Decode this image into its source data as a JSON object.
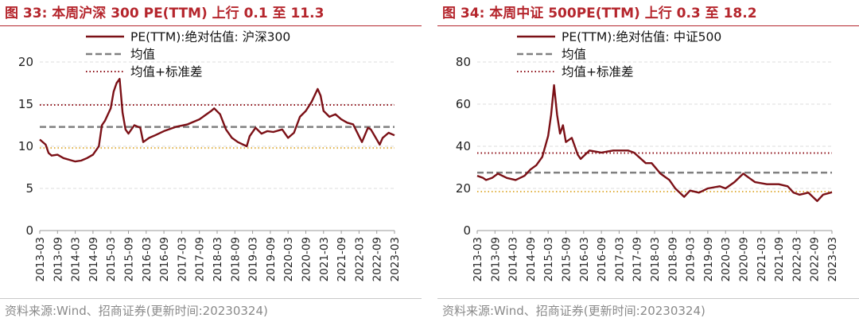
{
  "panels": [
    {
      "title": "图 33:  本周沪深 300 PE(TTM) 上行 0.1 至 11.3",
      "source": "资料来源:Wind、招商证券(更新时间:20230324)",
      "chart_data": {
        "type": "line",
        "title": "图 33:  本周沪深 300 PE(TTM) 上行 0.1 至 11.3",
        "ylim": [
          0,
          20
        ],
        "yticks": [
          "0",
          "5",
          "10",
          "15",
          "20"
        ],
        "xticks": [
          "2013-03",
          "2013-09",
          "2014-03",
          "2014-09",
          "2015-03",
          "2015-09",
          "2016-03",
          "2016-09",
          "2017-03",
          "2017-09",
          "2018-03",
          "2018-09",
          "2019-03",
          "2019-09",
          "2020-03",
          "2020-09",
          "2021-03",
          "2021-09",
          "2022-03",
          "2022-09",
          "2023-03"
        ],
        "xrange": [
          "2013-03",
          "2023-03"
        ],
        "legend_position": "top",
        "grid": "horizontal",
        "series": [
          {
            "name": "PE(TTM):绝对估值: 沪深300",
            "color": "#7b1016",
            "style": "solid",
            "x": [
              "2013-03",
              "2013-05",
              "2013-06",
              "2013-07",
              "2013-09",
              "2013-11",
              "2014-01",
              "2014-03",
              "2014-05",
              "2014-07",
              "2014-09",
              "2014-11",
              "2014-12",
              "2015-01",
              "2015-03",
              "2015-04",
              "2015-05",
              "2015-06",
              "2015-07",
              "2015-08",
              "2015-09",
              "2015-11",
              "2016-01",
              "2016-02",
              "2016-04",
              "2016-06",
              "2016-09",
              "2017-01",
              "2017-05",
              "2017-09",
              "2018-01",
              "2018-02",
              "2018-04",
              "2018-06",
              "2018-08",
              "2018-10",
              "2019-01",
              "2019-02",
              "2019-04",
              "2019-06",
              "2019-08",
              "2019-10",
              "2020-01",
              "2020-03",
              "2020-05",
              "2020-07",
              "2020-09",
              "2020-11",
              "2021-01",
              "2021-02",
              "2021-03",
              "2021-05",
              "2021-07",
              "2021-09",
              "2021-11",
              "2022-01",
              "2022-03",
              "2022-04",
              "2022-06",
              "2022-07",
              "2022-09",
              "2022-10",
              "2022-11",
              "2023-01",
              "2023-03"
            ],
            "values": [
              10.8,
              10.2,
              9.2,
              8.9,
              9.0,
              8.6,
              8.4,
              8.2,
              8.3,
              8.6,
              9.0,
              10.0,
              12.5,
              13.0,
              14.5,
              16.5,
              17.5,
              18.0,
              14.0,
              12.0,
              11.5,
              12.5,
              12.2,
              10.5,
              11.0,
              11.3,
              11.8,
              12.3,
              12.6,
              13.2,
              14.2,
              14.5,
              13.8,
              12.0,
              11.0,
              10.5,
              10.0,
              11.2,
              12.2,
              11.5,
              11.8,
              11.7,
              12.0,
              11.0,
              11.6,
              13.5,
              14.2,
              15.3,
              16.8,
              16.0,
              14.2,
              13.5,
              13.8,
              13.2,
              12.8,
              12.6,
              11.2,
              10.5,
              12.2,
              12.0,
              10.8,
              10.2,
              11.0,
              11.6,
              11.3
            ]
          },
          {
            "name": "均值",
            "color": "#808080",
            "style": "dashed",
            "value": 12.3
          },
          {
            "name": "均值+标准差",
            "color": "#8c0e16",
            "style": "dotted",
            "value": 14.9
          },
          {
            "name": "",
            "color": "#e0b040",
            "style": "dotted",
            "value": 9.8
          }
        ]
      }
    },
    {
      "title": "图 34:  本周中证 500PE(TTM) 上行 0.3 至 18.2",
      "source": "资料来源:Wind、招商证券(更新时间:20230324)",
      "chart_data": {
        "type": "line",
        "title": "图 34:  本周中证 500PE(TTM) 上行 0.3 至 18.2",
        "ylim": [
          0,
          80
        ],
        "yticks": [
          "0",
          "20",
          "40",
          "60",
          "80"
        ],
        "xticks": [
          "2013-03",
          "2013-09",
          "2014-03",
          "2014-09",
          "2015-03",
          "2015-09",
          "2016-03",
          "2016-09",
          "2017-03",
          "2017-09",
          "2018-03",
          "2018-09",
          "2019-03",
          "2019-09",
          "2020-03",
          "2020-09",
          "2021-03",
          "2021-09",
          "2022-03",
          "2022-09",
          "2023-03"
        ],
        "xrange": [
          "2013-03",
          "2023-03"
        ],
        "legend_position": "top",
        "grid": "horizontal",
        "series": [
          {
            "name": "PE(TTM):绝对估值: 中证500",
            "color": "#7b1016",
            "style": "solid",
            "x": [
              "2013-03",
              "2013-05",
              "2013-06",
              "2013-08",
              "2013-10",
              "2014-01",
              "2014-04",
              "2014-07",
              "2014-09",
              "2014-11",
              "2015-01",
              "2015-03",
              "2015-04",
              "2015-05",
              "2015-06",
              "2015-07",
              "2015-08",
              "2015-09",
              "2015-11",
              "2015-12",
              "2016-01",
              "2016-02",
              "2016-05",
              "2016-09",
              "2017-01",
              "2017-06",
              "2017-08",
              "2017-12",
              "2018-02",
              "2018-05",
              "2018-08",
              "2018-10",
              "2019-01",
              "2019-03",
              "2019-06",
              "2019-09",
              "2020-01",
              "2020-03",
              "2020-06",
              "2020-09",
              "2020-11",
              "2021-01",
              "2021-05",
              "2021-09",
              "2021-12",
              "2022-02",
              "2022-04",
              "2022-07",
              "2022-10",
              "2022-12",
              "2023-03"
            ],
            "values": [
              26,
              25,
              24,
              25,
              27,
              25,
              24,
              26,
              29,
              31,
              35,
              45,
              55,
              69,
              55,
              46,
              50,
              42,
              44,
              40,
              36,
              34,
              38,
              37,
              38,
              38,
              37,
              32,
              32,
              27,
              24,
              20,
              16,
              19,
              18,
              20,
              21,
              20,
              23,
              27,
              25,
              23,
              22,
              22,
              21,
              18,
              17,
              18,
              14,
              17,
              18.2
            ]
          },
          {
            "name": "均值",
            "color": "#808080",
            "style": "dashed",
            "value": 27.5
          },
          {
            "name": "均值+标准差",
            "color": "#8c0e16",
            "style": "dotted",
            "value": 36.8
          },
          {
            "name": "",
            "color": "#e0b040",
            "style": "dotted",
            "value": 18.5
          }
        ]
      }
    }
  ]
}
